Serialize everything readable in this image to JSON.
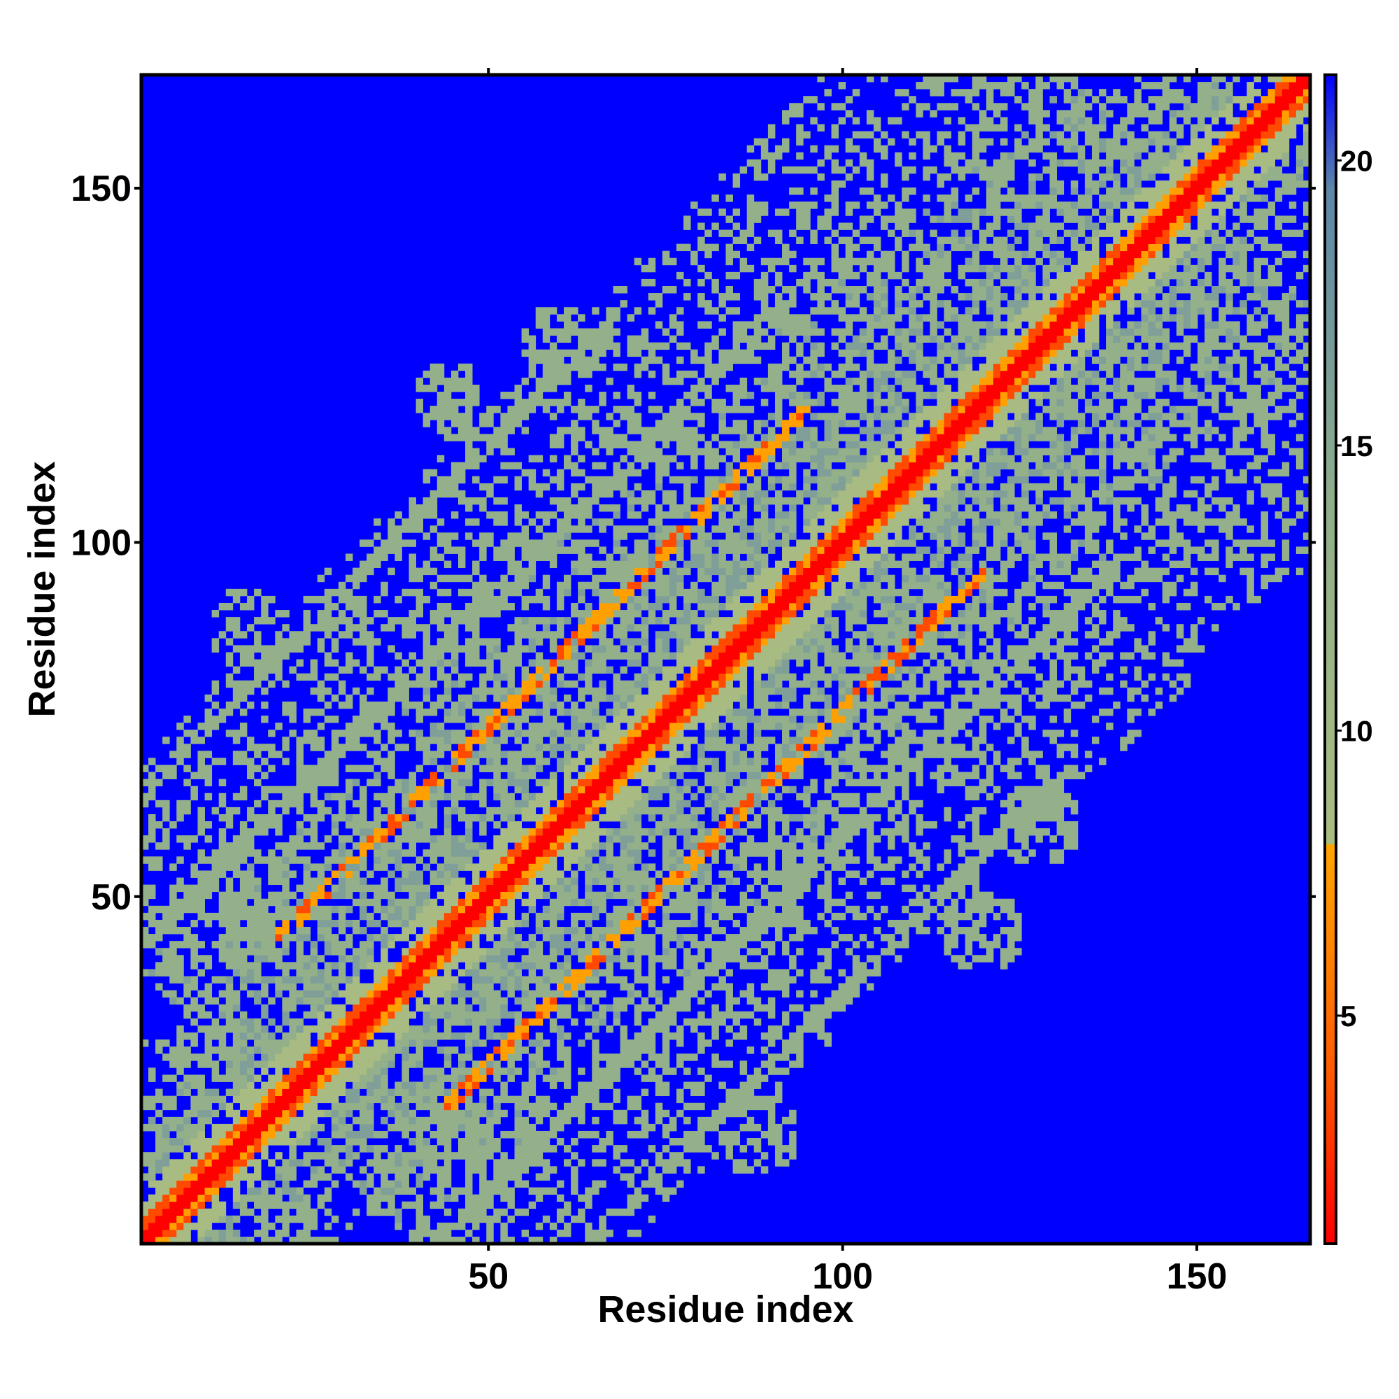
{
  "chart_data": {
    "type": "heatmap",
    "title": "",
    "xlabel": "Residue index",
    "ylabel": "Residue index",
    "x_range": [
      1,
      166
    ],
    "y_range": [
      1,
      166
    ],
    "x_ticks": [
      50,
      100,
      150
    ],
    "y_ticks": [
      50,
      100,
      150
    ],
    "colorbar": {
      "range": [
        1,
        21.5
      ],
      "ticks": [
        5,
        10,
        15,
        20
      ],
      "colors": [
        {
          "value": 1,
          "color": "#ff0000"
        },
        {
          "value": 4,
          "color": "#ff5a00"
        },
        {
          "value": 8,
          "color": "#ffa500"
        },
        {
          "value": 8.01,
          "color": "#a9bd80"
        },
        {
          "value": 14,
          "color": "#8fae8a"
        },
        {
          "value": 19.5,
          "color": "#5c87a8"
        },
        {
          "value": 21.5,
          "color": "#0000ff"
        }
      ],
      "background_color": "#0000ff"
    },
    "series": [
      {
        "values_description": "diagonal",
        "offset": 0,
        "value": 2
      },
      {
        "offset": 24,
        "start": 32,
        "end": 108,
        "value": 7
      },
      {
        "offset": -24,
        "start": 32,
        "end": 108,
        "value": 7
      },
      {
        "offset": 42,
        "start": 18,
        "end": 118,
        "value": 13
      },
      {
        "offset": -42,
        "start": 18,
        "end": 118,
        "value": 13
      },
      {
        "offset": 64,
        "start": 8,
        "end": 100,
        "value": 16
      },
      {
        "offset": -64,
        "start": 8,
        "end": 100,
        "value": 16
      }
    ]
  }
}
